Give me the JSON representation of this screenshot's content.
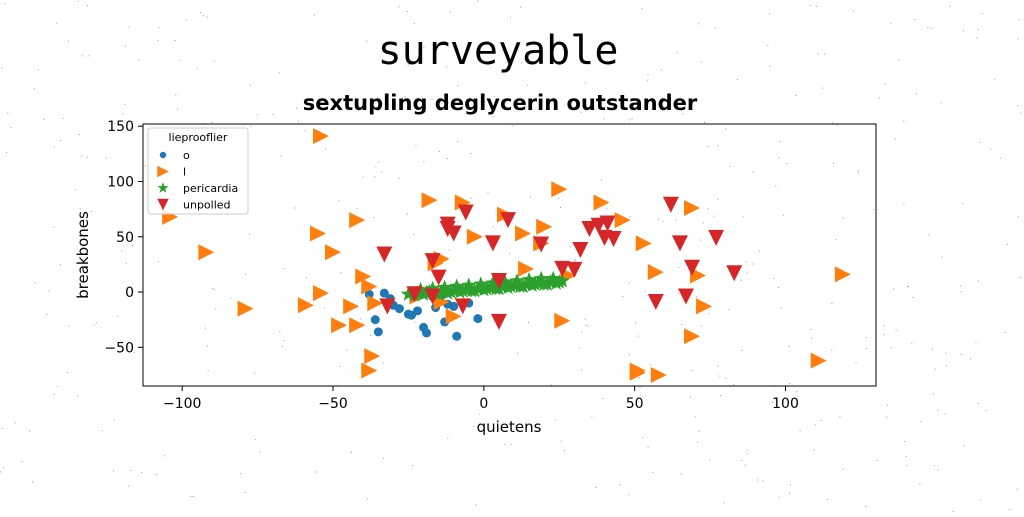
{
  "chart_data": {
    "type": "scatter",
    "suptitle": "surveyable",
    "title": "sextupling deglycerin outstander",
    "xlabel": "quietens",
    "ylabel": "breakbones",
    "xlim": [
      -113,
      130
    ],
    "ylim": [
      -85,
      152
    ],
    "xticks": [
      -100,
      -50,
      0,
      50,
      100
    ],
    "yticks": [
      -50,
      0,
      50,
      100,
      150
    ],
    "grid": false,
    "legend": {
      "title": "lieprooflier",
      "placement": "top-left"
    },
    "series": [
      {
        "name": "o",
        "marker": "circle",
        "color": "#1f77b4",
        "x": [
          -38,
          -33,
          -30,
          -36,
          -25,
          -20,
          -16,
          -12,
          -10,
          -19,
          -13,
          -35,
          -28,
          -22,
          -5,
          -2,
          -17,
          -9,
          -31,
          -24,
          -14
        ],
        "y": [
          -2,
          -1,
          -12,
          -25,
          -20,
          -32,
          -14,
          -11,
          -13,
          -37,
          -27,
          -36,
          -15,
          -17,
          -10,
          -24,
          -4,
          -40,
          -6,
          -21,
          -3
        ]
      },
      {
        "name": "l",
        "marker": "triangle-right",
        "color": "#ff7f0e",
        "x": [
          -54,
          -104,
          -92,
          -79,
          -59,
          -54,
          -55,
          -50,
          -42,
          -40,
          -38,
          -36,
          -37,
          -38,
          -42,
          -44,
          -48,
          -18,
          -14,
          -16,
          -10,
          -14,
          -7,
          -3,
          7,
          13,
          14,
          20,
          19,
          25,
          26,
          28,
          39,
          46,
          51,
          53,
          51,
          57,
          58,
          69,
          69,
          71,
          73,
          111,
          119,
          -22
        ],
        "y": [
          141,
          68,
          36,
          -15,
          -12,
          -1,
          53,
          36,
          65,
          14,
          5,
          -10,
          -58,
          -71,
          -30,
          -13,
          -30,
          83,
          30,
          26,
          -22,
          -9,
          81,
          50,
          70,
          53,
          21,
          59,
          44,
          93,
          -26,
          15,
          81,
          65,
          -71,
          44,
          -73,
          18,
          -75,
          -40,
          76,
          15,
          -13,
          -62,
          16,
          -4
        ]
      },
      {
        "name": "pericardia",
        "marker": "star",
        "color": "#2ca02c",
        "x": [
          -25,
          -22,
          -20,
          -18,
          -16,
          -14,
          -12,
          -10,
          -8,
          -6,
          -4,
          -2,
          0,
          2,
          4,
          6,
          8,
          10,
          12,
          14,
          16,
          18,
          20,
          22,
          24,
          26,
          -23,
          -19,
          -15,
          -11,
          -7,
          -3,
          1,
          5,
          9,
          13,
          17,
          21,
          25,
          -21,
          -17,
          -13,
          -9,
          -5,
          -1,
          3,
          7,
          11,
          15,
          19,
          23
        ],
        "y": [
          -2,
          -1,
          -2,
          0,
          -1,
          0,
          -1,
          1,
          0,
          2,
          1,
          3,
          2,
          4,
          3,
          5,
          4,
          6,
          5,
          7,
          6,
          8,
          7,
          9,
          8,
          10,
          -3,
          -1,
          -2,
          0,
          1,
          1,
          3,
          3,
          5,
          5,
          7,
          7,
          9,
          2,
          3,
          4,
          5,
          6,
          7,
          8,
          9,
          10,
          11,
          12,
          12
        ]
      },
      {
        "name": "unpolled",
        "marker": "triangle-down",
        "color": "#d62728",
        "x": [
          -33,
          -23,
          -17,
          -15,
          -12,
          -10,
          -12,
          -6,
          3,
          8,
          -32,
          -17,
          -7,
          5,
          19,
          26,
          32,
          30,
          35,
          38,
          40,
          41,
          43,
          57,
          62,
          65,
          67,
          69,
          77,
          83,
          5
        ],
        "y": [
          34,
          -2,
          28,
          13,
          61,
          53,
          57,
          72,
          44,
          65,
          -13,
          -4,
          -13,
          10,
          43,
          21,
          38,
          20,
          57,
          60,
          49,
          62,
          48,
          -9,
          79,
          44,
          -4,
          22,
          49,
          17,
          -27
        ]
      }
    ]
  }
}
